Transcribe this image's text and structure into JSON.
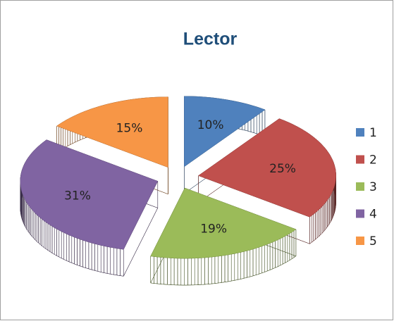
{
  "chart_data": {
    "type": "pie",
    "title": "Lector",
    "categories": [
      "1",
      "2",
      "3",
      "4",
      "5"
    ],
    "values": [
      10,
      25,
      19,
      31,
      15
    ],
    "value_labels": [
      "10%",
      "25%",
      "19%",
      "31%",
      "15%"
    ],
    "colors": [
      "#4f81bd",
      "#c0504d",
      "#9bbb59",
      "#8064a2",
      "#f79646"
    ],
    "legend": "right"
  }
}
